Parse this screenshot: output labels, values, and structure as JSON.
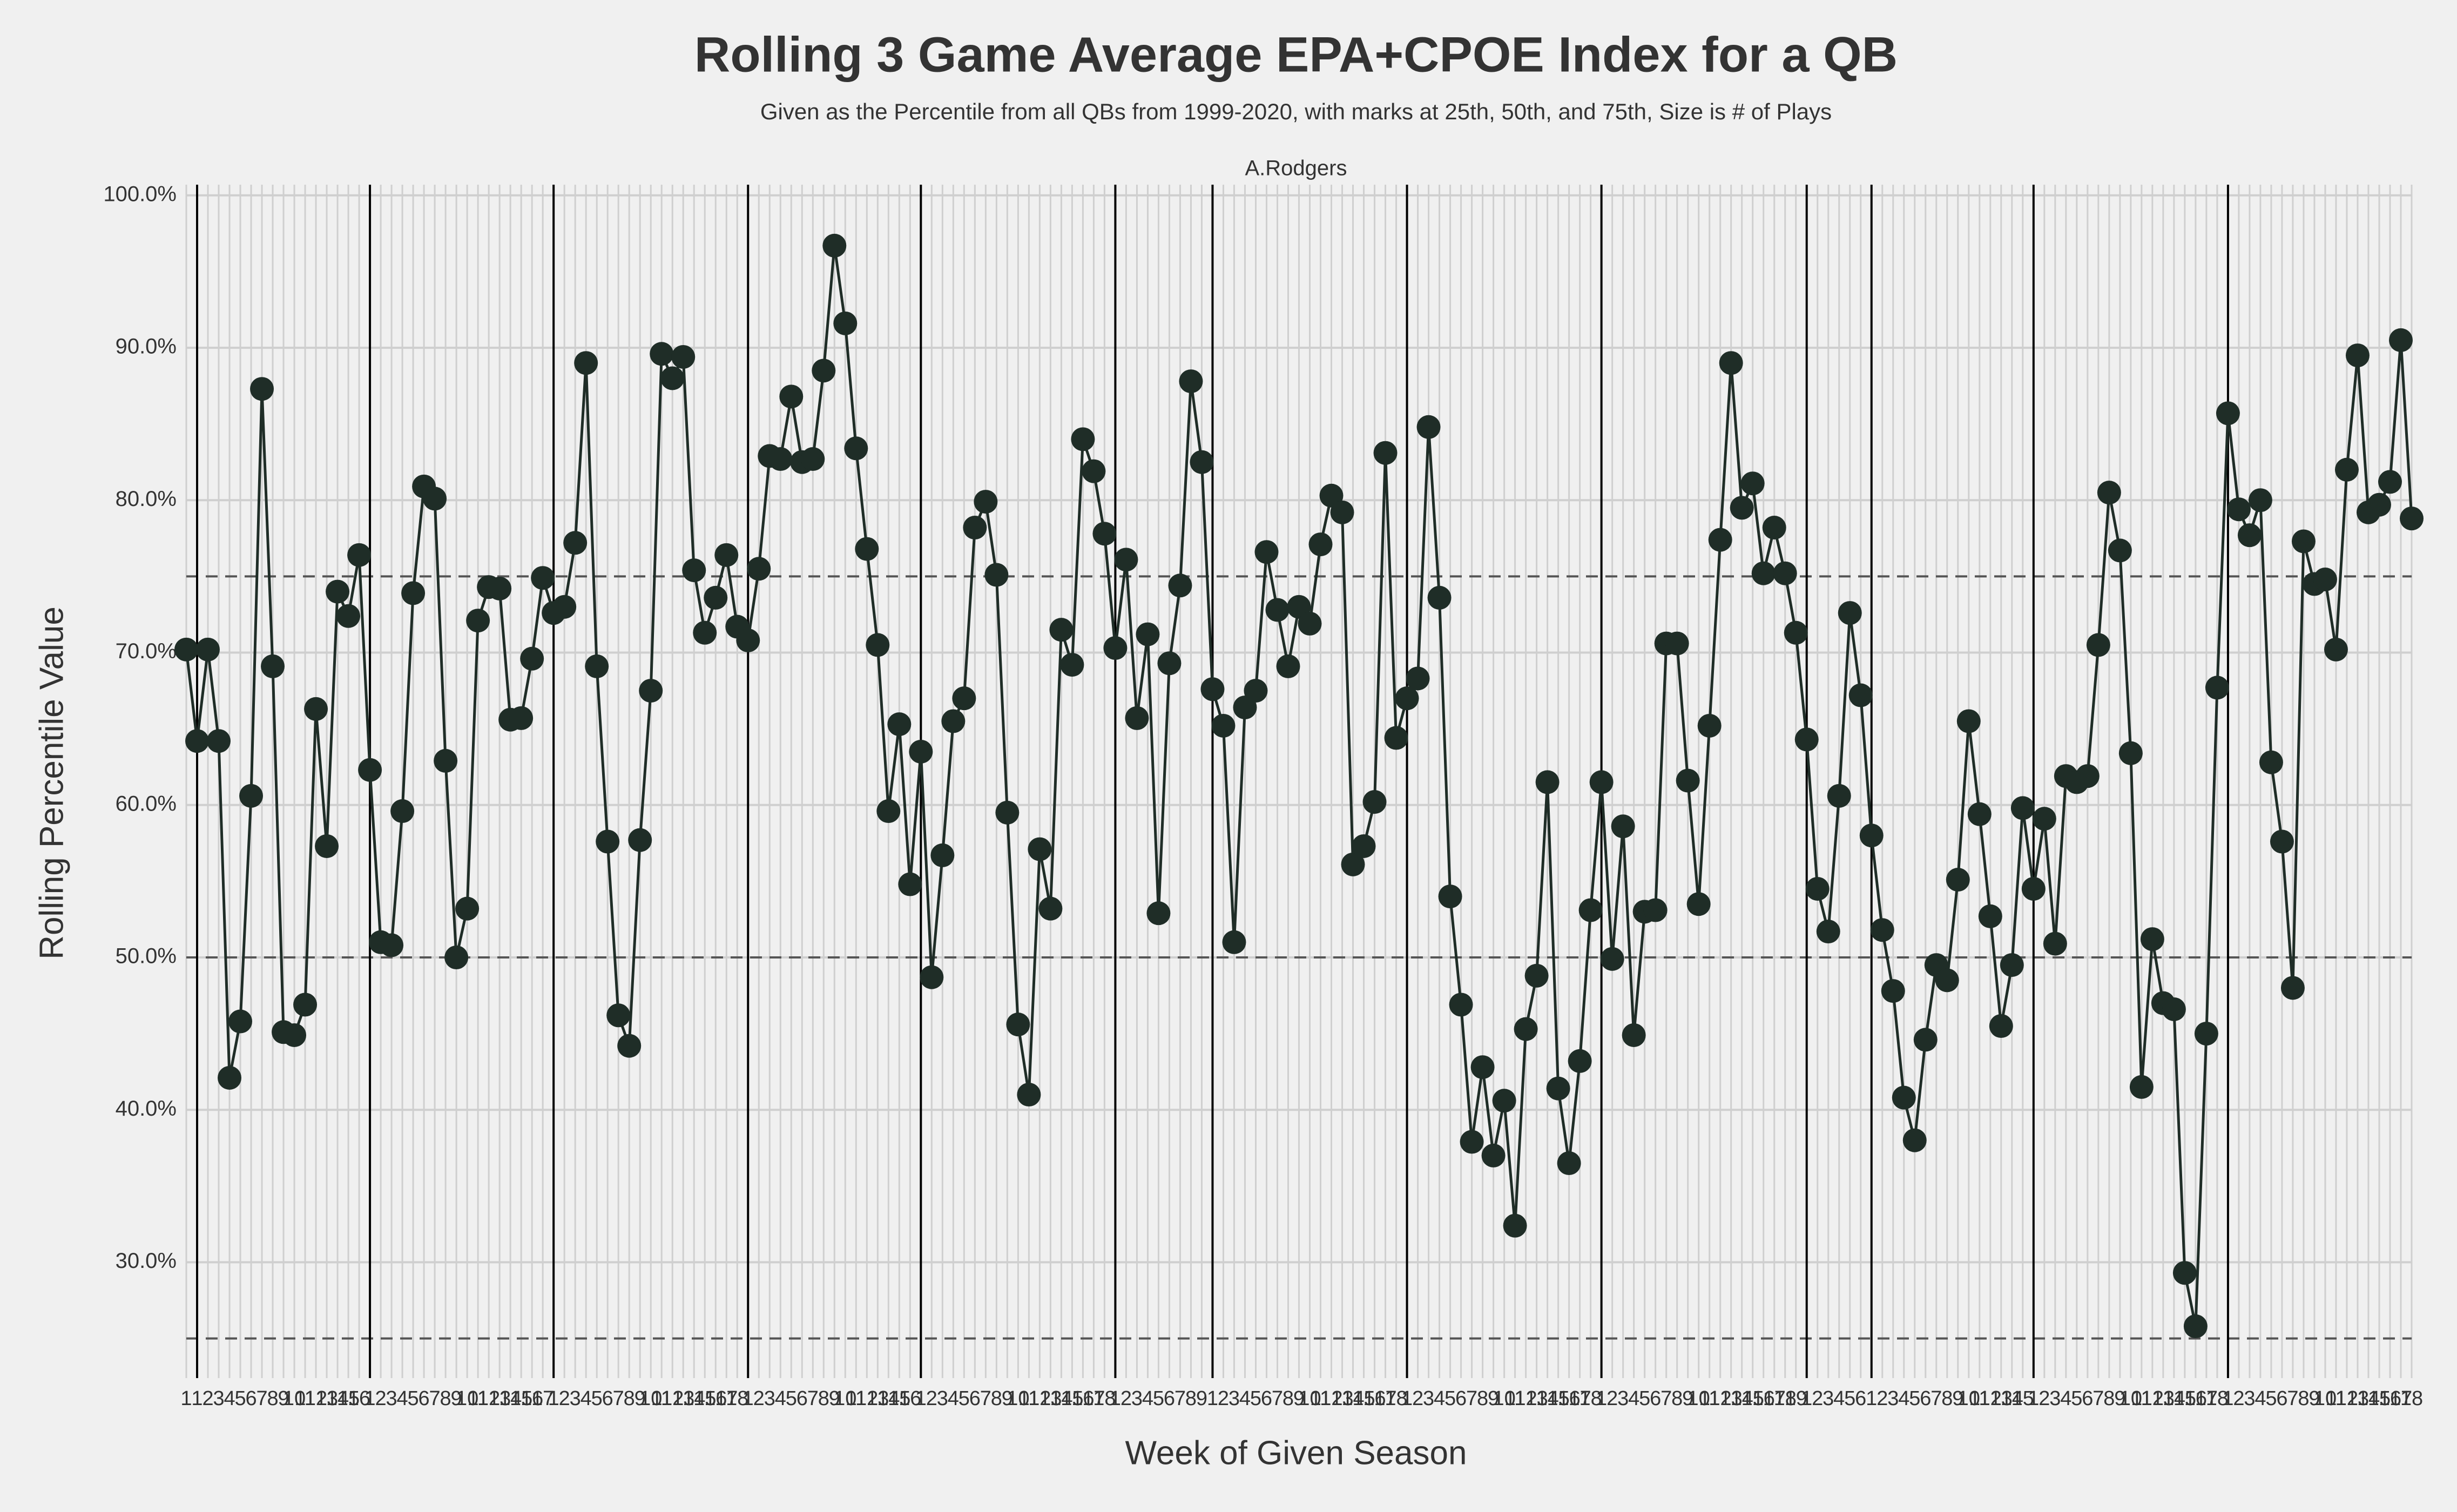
{
  "chart_data": {
    "type": "line-scatter",
    "title": "Rolling 3 Game Average EPA+CPOE Index for a QB",
    "subtitle": "Given as the Percentile from all QBs from 1999-2020, with marks at 25th, 50th, and 75th, Size is # of Plays",
    "facet_label": "A.Rodgers",
    "xlabel": "Week of Given Season",
    "ylabel": "Rolling Percentile Value",
    "color": "#1f2d27",
    "grid": true,
    "hlines": [
      25,
      50,
      75
    ],
    "season_lines": [
      1,
      17,
      34,
      52,
      68,
      86,
      95,
      113,
      131,
      150,
      156,
      171,
      189
    ],
    "categories": [
      1,
      1,
      2,
      3,
      4,
      5,
      6,
      7,
      8,
      9,
      10,
      11,
      12,
      13,
      14,
      15,
      16,
      1,
      2,
      3,
      4,
      5,
      6,
      7,
      8,
      9,
      10,
      11,
      12,
      13,
      14,
      15,
      16,
      17,
      1,
      2,
      3,
      4,
      5,
      6,
      7,
      8,
      9,
      10,
      11,
      12,
      13,
      14,
      15,
      16,
      17,
      18,
      1,
      2,
      3,
      4,
      5,
      6,
      7,
      8,
      9,
      10,
      11,
      12,
      13,
      14,
      15,
      16,
      1,
      2,
      3,
      4,
      5,
      6,
      7,
      8,
      9,
      10,
      11,
      12,
      13,
      14,
      15,
      16,
      17,
      18,
      1,
      2,
      3,
      4,
      5,
      6,
      7,
      8,
      9,
      1,
      2,
      3,
      4,
      5,
      6,
      7,
      8,
      9,
      10,
      11,
      12,
      13,
      14,
      15,
      16,
      17,
      18,
      1,
      2,
      3,
      4,
      5,
      6,
      7,
      8,
      9,
      10,
      11,
      12,
      13,
      14,
      15,
      16,
      17,
      18,
      1,
      2,
      3,
      4,
      5,
      6,
      7,
      8,
      9,
      10,
      11,
      12,
      13,
      14,
      15,
      16,
      17,
      18,
      19,
      1,
      2,
      3,
      4,
      5,
      6,
      1,
      2,
      3,
      4,
      5,
      6,
      7,
      8,
      9,
      10,
      11,
      12,
      13,
      14,
      15,
      1,
      2,
      3,
      4,
      5,
      6,
      7,
      8,
      9,
      10,
      11,
      12,
      13,
      14,
      15,
      16,
      17,
      18,
      1,
      2,
      3,
      4,
      5,
      6,
      7,
      8,
      9,
      10,
      11,
      12,
      13,
      14,
      15,
      16,
      17,
      18
    ],
    "values": [
      70.2,
      64.2,
      70.2,
      64.2,
      42.1,
      45.8,
      60.6,
      87.3,
      69.1,
      45.1,
      44.9,
      46.9,
      66.3,
      57.3,
      74.0,
      72.4,
      76.4,
      62.3,
      51.0,
      50.8,
      59.6,
      73.9,
      80.9,
      80.1,
      62.9,
      50.0,
      53.2,
      72.1,
      74.3,
      74.2,
      65.6,
      65.7,
      69.6,
      74.9,
      72.6,
      73.0,
      77.2,
      89.0,
      69.1,
      57.6,
      46.2,
      44.2,
      57.7,
      67.5,
      89.6,
      88.0,
      89.4,
      75.4,
      71.3,
      73.6,
      76.4,
      71.7,
      70.8,
      75.5,
      82.9,
      82.7,
      86.8,
      82.5,
      82.7,
      88.5,
      96.7,
      91.6,
      83.4,
      76.8,
      70.5,
      59.6,
      65.3,
      54.8,
      63.5,
      48.7,
      56.7,
      65.5,
      67.0,
      78.2,
      79.9,
      75.1,
      59.5,
      45.6,
      41.0,
      57.1,
      53.2,
      71.5,
      69.2,
      84.0,
      81.9,
      77.8,
      70.3,
      76.1,
      65.7,
      71.2,
      52.9,
      69.3,
      74.4,
      87.8,
      82.5,
      67.6,
      65.2,
      51.0,
      66.4,
      67.5,
      76.6,
      72.8,
      69.1,
      73.0,
      71.9,
      77.1,
      80.3,
      79.2,
      56.1,
      57.3,
      60.2,
      83.1,
      64.4,
      67.0,
      68.3,
      84.8,
      73.6,
      54.0,
      46.9,
      37.9,
      42.8,
      37.0,
      40.6,
      32.4,
      45.3,
      48.8,
      61.5,
      41.4,
      36.5,
      43.2,
      53.1,
      61.5,
      49.9,
      58.6,
      44.9,
      53.0,
      53.1,
      70.6,
      70.6,
      61.6,
      53.5,
      65.2,
      77.4,
      89.0,
      79.5,
      81.1,
      75.2,
      78.2,
      75.2,
      71.3,
      64.3,
      54.5,
      51.7,
      60.6,
      72.6,
      67.2,
      58.0,
      51.8,
      47.8,
      40.8,
      38.0,
      44.6,
      49.5,
      48.5,
      55.1,
      65.5,
      59.4,
      52.7,
      45.5,
      49.5,
      59.8,
      54.5,
      59.1,
      50.9,
      61.9,
      61.5,
      61.9,
      70.5,
      80.5,
      76.7,
      63.4,
      41.5,
      51.2,
      47.0,
      46.6,
      29.3,
      25.8,
      45.0,
      67.7,
      85.7,
      79.4,
      77.7,
      80.0,
      62.8,
      57.6,
      48.0,
      77.3,
      74.5,
      74.8,
      70.2,
      82.0,
      89.5,
      79.2,
      79.7,
      81.2,
      90.5,
      78.8
    ],
    "ylim": [
      22.4,
      100.7
    ],
    "yticks": [
      {
        "value": 30,
        "label": "30.0%"
      },
      {
        "value": 40,
        "label": "40.0%"
      },
      {
        "value": 50,
        "label": "50.0%"
      },
      {
        "value": 60,
        "label": "60.0%"
      },
      {
        "value": 70,
        "label": "70.0%"
      },
      {
        "value": 80,
        "label": "80.0%"
      },
      {
        "value": 90,
        "label": "90.0%"
      },
      {
        "value": 100,
        "label": "100.0%"
      }
    ]
  }
}
